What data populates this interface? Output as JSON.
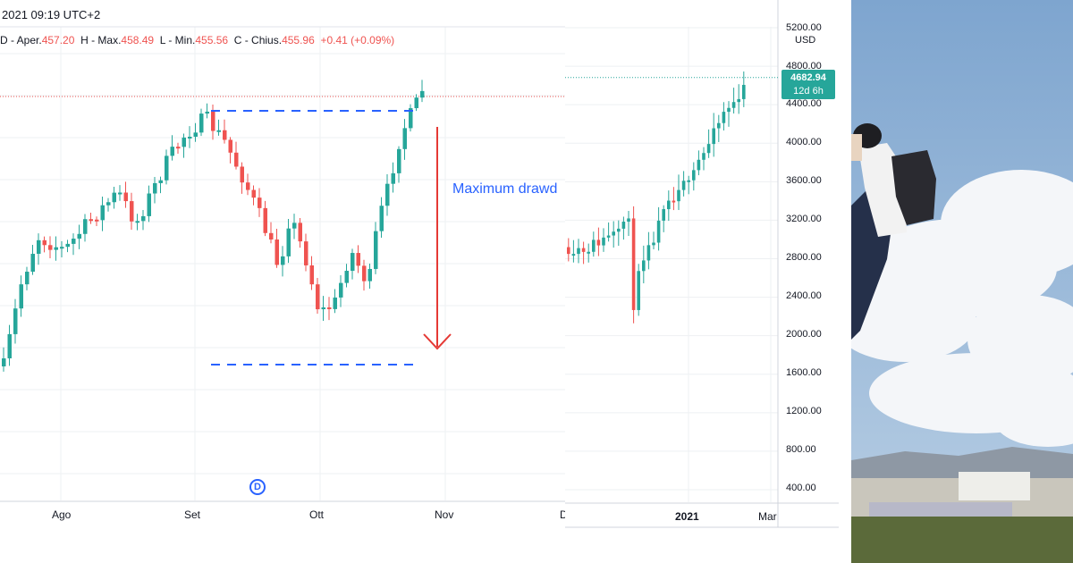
{
  "left_chart": {
    "header_datetime": "2021 09:19 UTC+2",
    "ohlc": {
      "open_label": "D - Aper.",
      "open": "457.20",
      "high_label": "H - Max.",
      "high": "458.49",
      "low_label": "L - Min.",
      "low": "455.56",
      "close_label": "C - Chius.",
      "close": "455.96",
      "change": "+0.41 (+0.09%)"
    },
    "annotation": "Maximum drawd",
    "event_marker": "D",
    "x_labels": [
      "Ago",
      "Set",
      "Ott",
      "Nov",
      "D"
    ],
    "colors": {
      "up": "#26a69a",
      "down": "#ef5350",
      "annotation": "#2962ff",
      "arrow": "#e53935"
    }
  },
  "right_chart": {
    "currency": "USD",
    "last_price": "4682.94",
    "countdown": "12d 6h",
    "y_ticks": [
      "5200.00",
      "4800.00",
      "4400.00",
      "4000.00",
      "3600.00",
      "3200.00",
      "2800.00",
      "2400.00",
      "2000.00",
      "1600.00",
      "1200.00",
      "800.00",
      "400.00"
    ],
    "x_labels": [
      "2021",
      "Mar"
    ]
  },
  "photo": {
    "description_icon": "climber-photo"
  },
  "chart_data": [
    {
      "type": "candlestick",
      "title": "",
      "x_labels": [
        "Ago",
        "Set",
        "Ott",
        "Nov"
      ],
      "last_ohlc": {
        "open": 457.2,
        "high": 458.49,
        "low": 455.56,
        "close": 455.96
      },
      "change": 0.41,
      "change_pct": 0.09,
      "annotation": "Maximum drawdown",
      "legend": false,
      "grid": true
    },
    {
      "type": "candlestick",
      "title": "",
      "currency": "USD",
      "ylim": [
        400,
        5200
      ],
      "y_ticks": [
        5200,
        4800,
        4400,
        4000,
        3600,
        3200,
        2800,
        2400,
        2000,
        1600,
        1200,
        800,
        400
      ],
      "x_labels": [
        "2021",
        "Mar"
      ],
      "last_price": 4682.94,
      "legend": false,
      "grid": true
    }
  ]
}
